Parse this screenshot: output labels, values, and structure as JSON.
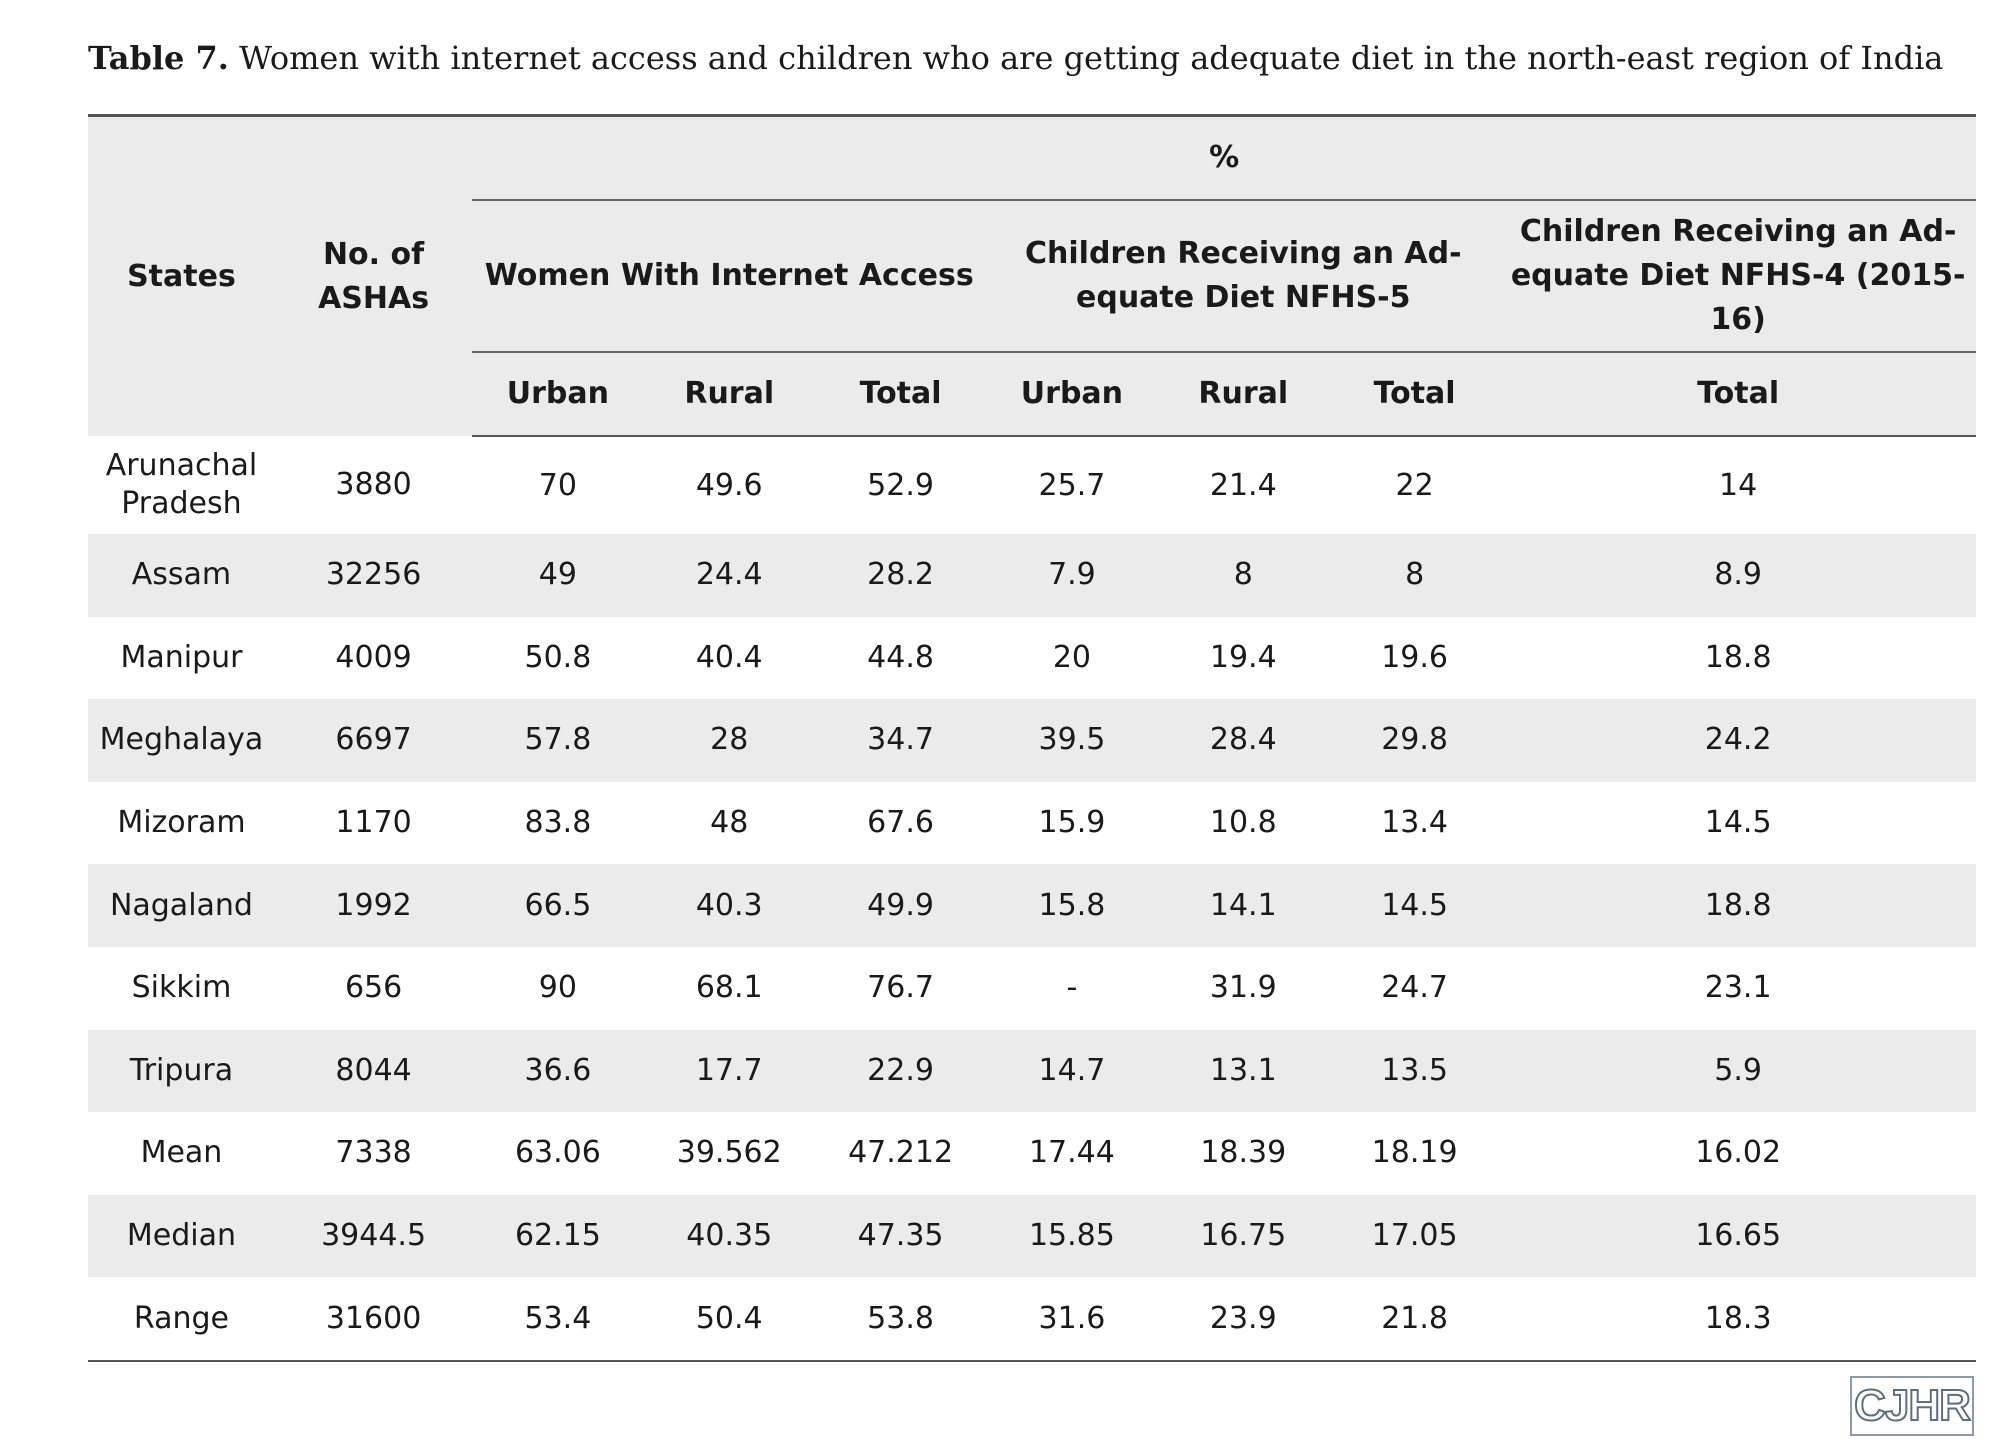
{
  "caption": {
    "label": "Table 7.",
    "text": "Women with internet access and children who are getting adequate diet in the north-east region of India"
  },
  "table": {
    "header": {
      "states": "States",
      "ashas": "No. of ASHAs",
      "percent": "%",
      "group_internet": "Women With Internet Access",
      "group_nfhs5": "Children Receiving an Ad-equate Diet NFHS-5",
      "group_nfhs4": "Children Receiving an Ad-equate Diet NFHS-4 (2015-16)",
      "sub": [
        "Urban",
        "Rural",
        "Total",
        "Urban",
        "Rural",
        "Total",
        "Total"
      ]
    },
    "rows": [
      [
        "Arunachal Pradesh",
        "3880",
        "70",
        "49.6",
        "52.9",
        "25.7",
        "21.4",
        "22",
        "14"
      ],
      [
        "Assam",
        "32256",
        "49",
        "24.4",
        "28.2",
        "7.9",
        "8",
        "8",
        "8.9"
      ],
      [
        "Manipur",
        "4009",
        "50.8",
        "40.4",
        "44.8",
        "20",
        "19.4",
        "19.6",
        "18.8"
      ],
      [
        "Meghalaya",
        "6697",
        "57.8",
        "28",
        "34.7",
        "39.5",
        "28.4",
        "29.8",
        "24.2"
      ],
      [
        "Mizoram",
        "1170",
        "83.8",
        "48",
        "67.6",
        "15.9",
        "10.8",
        "13.4",
        "14.5"
      ],
      [
        "Nagaland",
        "1992",
        "66.5",
        "40.3",
        "49.9",
        "15.8",
        "14.1",
        "14.5",
        "18.8"
      ],
      [
        "Sikkim",
        "656",
        "90",
        "68.1",
        "76.7",
        "-",
        "31.9",
        "24.7",
        "23.1"
      ],
      [
        "Tripura",
        "8044",
        "36.6",
        "17.7",
        "22.9",
        "14.7",
        "13.1",
        "13.5",
        "5.9"
      ],
      [
        "Mean",
        "7338",
        "63.06",
        "39.562",
        "47.212",
        "17.44",
        "18.39",
        "18.19",
        "16.02"
      ],
      [
        "Median",
        "3944.5",
        "62.15",
        "40.35",
        "47.35",
        "15.85",
        "16.75",
        "17.05",
        "16.65"
      ],
      [
        "Range",
        "31600",
        "53.4",
        "50.4",
        "53.8",
        "31.6",
        "23.9",
        "21.8",
        "18.3"
      ]
    ]
  },
  "logo": {
    "text": "CJHR"
  }
}
